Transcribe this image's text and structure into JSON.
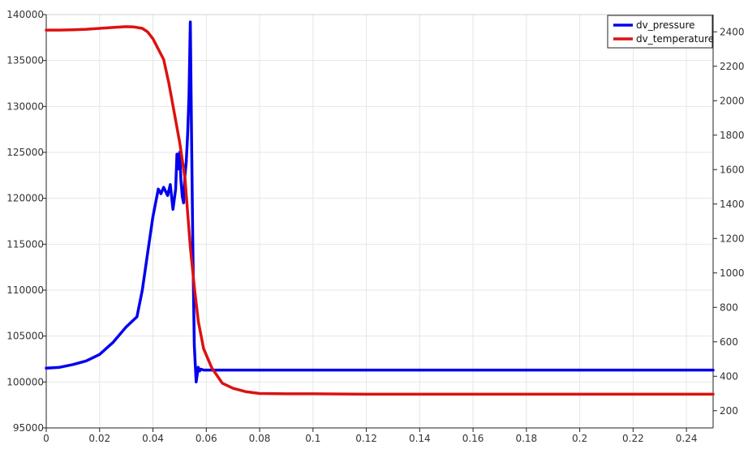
{
  "chart_data": {
    "type": "line",
    "title": "",
    "xlabel": "",
    "ylabel": "",
    "y2label": "",
    "xlim": [
      0,
      0.25
    ],
    "ylim": [
      95000,
      140000
    ],
    "y2lim": [
      100,
      2500
    ],
    "grid": true,
    "legend_position": "top-right",
    "x_ticks": [
      "0",
      "0.02",
      "0.04",
      "0.06",
      "0.08",
      "0.1",
      "0.12",
      "0.14",
      "0.16",
      "0.18",
      "0.2",
      "0.22",
      "0.24"
    ],
    "x_tick_values": [
      0,
      0.02,
      0.04,
      0.06,
      0.08,
      0.1,
      0.12,
      0.14,
      0.16,
      0.18,
      0.2,
      0.22,
      0.24
    ],
    "y_ticks": [
      "95000",
      "100000",
      "105000",
      "110000",
      "115000",
      "120000",
      "125000",
      "130000",
      "135000",
      "140000"
    ],
    "y_tick_values": [
      95000,
      100000,
      105000,
      110000,
      115000,
      120000,
      125000,
      130000,
      135000,
      140000
    ],
    "y2_ticks": [
      "200",
      "400",
      "600",
      "800",
      "1000",
      "1200",
      "1400",
      "1600",
      "1800",
      "2000",
      "2200",
      "2400"
    ],
    "y2_tick_values": [
      200,
      400,
      600,
      800,
      1000,
      1200,
      1400,
      1600,
      1800,
      2000,
      2200,
      2400
    ],
    "series": [
      {
        "name": "dv_pressure",
        "color": "#0000ee",
        "axis": "left",
        "x": [
          0,
          0.005,
          0.01,
          0.015,
          0.02,
          0.025,
          0.03,
          0.034,
          0.036,
          0.038,
          0.04,
          0.042,
          0.043,
          0.044,
          0.0455,
          0.0465,
          0.0475,
          0.0485,
          0.049,
          0.0495,
          0.05,
          0.0505,
          0.051,
          0.0515,
          0.052,
          0.0525,
          0.053,
          0.0535,
          0.054,
          0.0545,
          0.055,
          0.0555,
          0.0562,
          0.057,
          0.0575,
          0.058,
          0.059,
          0.06,
          0.07,
          0.1,
          0.15,
          0.2,
          0.25
        ],
        "y": [
          101500,
          101600,
          101900,
          102300,
          103000,
          104300,
          106000,
          107100,
          110000,
          114000,
          118000,
          121000,
          120500,
          121200,
          120300,
          121500,
          118800,
          121000,
          124800,
          123200,
          125000,
          122000,
          120200,
          119500,
          122500,
          124000,
          127000,
          131000,
          139200,
          126000,
          114000,
          104000,
          100000,
          101600,
          101200,
          101400,
          101300,
          101300,
          101300,
          101300,
          101300,
          101300,
          101300
        ]
      },
      {
        "name": "dv_temperature",
        "color": "#dd1111",
        "axis": "right",
        "x": [
          0,
          0.005,
          0.01,
          0.015,
          0.02,
          0.025,
          0.03,
          0.033,
          0.036,
          0.038,
          0.04,
          0.042,
          0.044,
          0.046,
          0.048,
          0.05,
          0.052,
          0.054,
          0.0555,
          0.057,
          0.059,
          0.062,
          0.066,
          0.07,
          0.075,
          0.08,
          0.09,
          0.1,
          0.12,
          0.15,
          0.2,
          0.25
        ],
        "y": [
          2410,
          2410,
          2412,
          2415,
          2420,
          2425,
          2430,
          2428,
          2420,
          2400,
          2360,
          2300,
          2240,
          2100,
          1930,
          1760,
          1550,
          1150,
          920,
          720,
          560,
          450,
          360,
          330,
          310,
          300,
          298,
          298,
          296,
          296,
          296,
          296
        ]
      }
    ]
  }
}
